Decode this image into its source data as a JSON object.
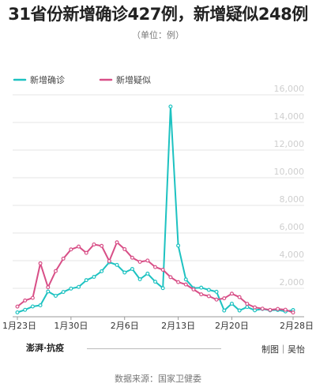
{
  "title": "31省份新增确诊427例，新增疑似248例",
  "unit": "（单位：例）",
  "brand": "澎湃·抗疫",
  "credit": "制图｜吴怡",
  "source": "数据来源：国家卫健委",
  "colors": {
    "confirmed": "#1dc2c1",
    "suspected": "#d84f87",
    "axis": "#999999",
    "grid": "#e6e6e6",
    "ticklabel": "#cfcfcf"
  },
  "chart_data": {
    "type": "line",
    "title": "31省份新增确诊427例，新增疑似248例",
    "legend_position": "top-left",
    "x": [
      "1月23日",
      "1月24日",
      "1月25日",
      "1月26日",
      "1月27日",
      "1月28日",
      "1月29日",
      "1月30日",
      "1月31日",
      "2月1日",
      "2月2日",
      "2月3日",
      "2月4日",
      "2月5日",
      "2月6日",
      "2月7日",
      "2月8日",
      "2月9日",
      "2月10日",
      "2月11日",
      "2月12日",
      "2月13日",
      "2月14日",
      "2月15日",
      "2月16日",
      "2月17日",
      "2月18日",
      "2月19日",
      "2月20日",
      "2月21日",
      "2月22日",
      "2月23日",
      "2月24日",
      "2月25日",
      "2月26日",
      "2月27日",
      "2月28日"
    ],
    "x_ticks": [
      "1月23日",
      "1月30日",
      "2月6日",
      "2月13日",
      "2月20日",
      "2月28日"
    ],
    "x_tick_indices": [
      0,
      7,
      14,
      21,
      28,
      36
    ],
    "ylim": [
      0,
      16000
    ],
    "y_ticks": [
      "2,000",
      "4,000",
      "6,000",
      "8,000",
      "10,000",
      "12,000",
      "14,000",
      "16,000"
    ],
    "y_tick_values": [
      2000,
      4000,
      6000,
      8000,
      10000,
      12000,
      14000,
      16000
    ],
    "grid": true,
    "series": [
      {
        "name": "新增确诊",
        "color": "#1dc2c1",
        "values": [
          259,
          444,
          688,
          769,
          1771,
          1459,
          1737,
          1982,
          2102,
          2590,
          2829,
          3235,
          3887,
          3694,
          3143,
          3399,
          2656,
          3062,
          2478,
          2015,
          15152,
          5090,
          2641,
          2009,
          2048,
          1886,
          1749,
          394,
          889,
          397,
          648,
          409,
          508,
          406,
          433,
          327,
          427
        ]
      },
      {
        "name": "新增疑似",
        "color": "#d84f87",
        "values": [
          680,
          1118,
          1309,
          3806,
          2077,
          3248,
          4148,
          4812,
          5019,
          4562,
          5173,
          5072,
          3971,
          5328,
          4833,
          4214,
          3916,
          4008,
          3536,
          3342,
          2807,
          2450,
          2277,
          1918,
          1563,
          1432,
          1185,
          1277,
          1614,
          1361,
          882,
          620,
          530,
          439,
          508,
          452,
          248
        ]
      }
    ]
  }
}
